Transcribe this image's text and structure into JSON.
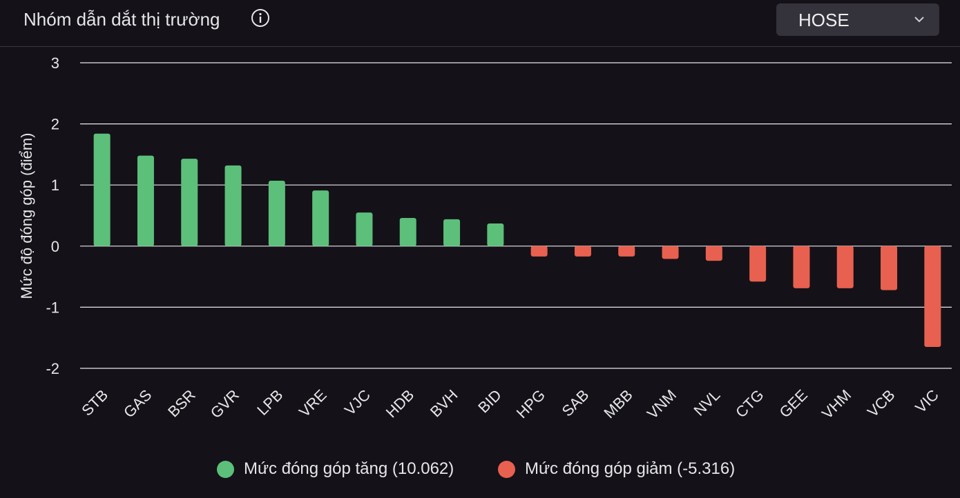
{
  "header": {
    "title": "Nhóm dẫn dắt thị trường",
    "info_icon": "info-icon",
    "exchange_selected": "HOSE",
    "dropdown_icon": "chevron-down-icon"
  },
  "colors": {
    "positive": "#5cbf7a",
    "negative": "#e8604f",
    "background": "#141218",
    "grid": "#e9e9ec",
    "text": "#e6e6e8"
  },
  "chart_data": {
    "type": "bar",
    "ylabel": "Mức độ đóng góp (điểm)",
    "xlabel": "",
    "ylim": [
      -2,
      3
    ],
    "yticks": [
      3,
      2,
      1,
      0,
      -1,
      -2
    ],
    "grid": true,
    "legend_position": "bottom",
    "categories": [
      "STB",
      "GAS",
      "BSR",
      "GVR",
      "LPB",
      "VRE",
      "VJC",
      "HDB",
      "BVH",
      "BID",
      "HPG",
      "SAB",
      "MBB",
      "VNM",
      "NVL",
      "CTG",
      "GEE",
      "VHM",
      "VCB",
      "VIC"
    ],
    "values": [
      1.84,
      1.48,
      1.43,
      1.32,
      1.07,
      0.91,
      0.55,
      0.46,
      0.44,
      0.37,
      -0.17,
      -0.17,
      -0.17,
      -0.21,
      -0.24,
      -0.58,
      -0.69,
      -0.69,
      -0.72,
      -1.65
    ],
    "legend": [
      {
        "label": "Mức đóng góp tăng (10.062)",
        "color": "#5cbf7a"
      },
      {
        "label": "Mức đóng góp giảm (-5.316)",
        "color": "#e8604f"
      }
    ]
  }
}
